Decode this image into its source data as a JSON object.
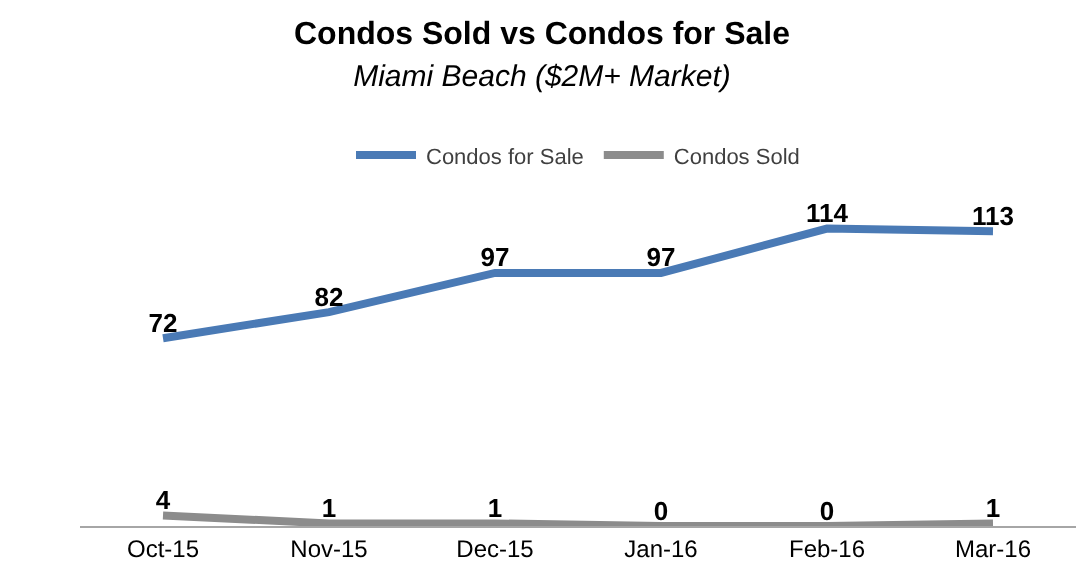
{
  "chart_data": {
    "type": "line",
    "title": "Condos Sold vs Condos for Sale",
    "subtitle": "Miami Beach ($2M+ Market)",
    "categories": [
      "Oct-15",
      "Nov-15",
      "Dec-15",
      "Jan-16",
      "Feb-16",
      "Mar-16"
    ],
    "series": [
      {
        "name": "Condos for Sale",
        "color": "#4a7ab5",
        "values": [
          72,
          82,
          97,
          97,
          114,
          113
        ]
      },
      {
        "name": "Condos Sold",
        "color": "#8c8c8c",
        "values": [
          4,
          1,
          1,
          0,
          0,
          1
        ]
      }
    ],
    "data_labels": true,
    "legend": "top",
    "grid": false,
    "marker": "none",
    "line_style": "solid"
  }
}
